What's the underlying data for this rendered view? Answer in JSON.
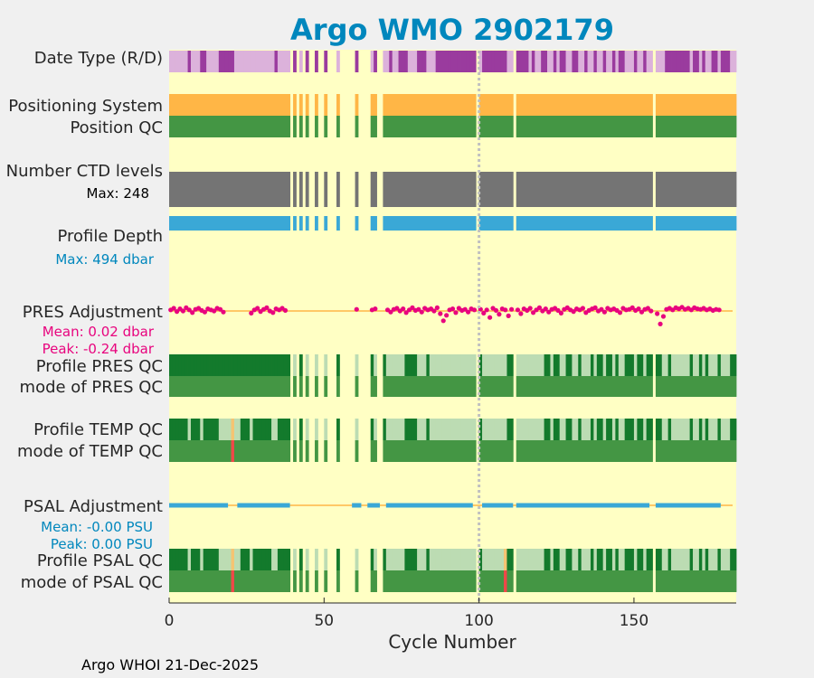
{
  "chart_data": {
    "type": "timeline",
    "title": "Argo WMO 2902179",
    "xlabel": "Cycle Number",
    "xlim": [
      0,
      183
    ],
    "xticks": [
      "0",
      "50",
      "100",
      "150"
    ],
    "marker_cycle": 100,
    "footer": "Argo WHOI 21-Dec-2025",
    "rows": {
      "date_type": "Date Type (R/D)",
      "positioning": "Positioning System",
      "position_qc": "Position QC",
      "ctd_levels": "Number CTD levels",
      "ctd_max": "Max: 248",
      "profile_depth": "Profile Depth",
      "depth_max": "Max:  494 dbar",
      "pres_adj": "PRES Adjustment",
      "pres_mean": "Mean: 0.02 dbar",
      "pres_peak": "Peak: -0.24 dbar",
      "pres_qc": "Profile PRES QC",
      "pres_mode": "mode of PRES QC",
      "temp_qc": "Profile TEMP QC",
      "temp_mode": "mode of TEMP QC",
      "psal_adj": "PSAL Adjustment",
      "psal_mean": "Mean: -0.00 PSU",
      "psal_peak": "Peak: 0.00 PSU",
      "psal_qc": "Profile PSAL QC",
      "psal_mode": "mode of PSAL QC"
    },
    "missing_cycles": [
      39,
      41,
      43,
      45,
      46,
      48,
      49,
      51,
      52,
      53,
      55,
      56,
      57,
      58,
      59,
      61,
      62,
      63,
      64,
      67,
      68,
      99,
      111,
      156
    ],
    "date_type_realtime_cycles": [
      6,
      10,
      11,
      16,
      17,
      18,
      19,
      20,
      34,
      40,
      44,
      47,
      50,
      60,
      66,
      71,
      74,
      75,
      76,
      80,
      81,
      82,
      86,
      87,
      88,
      89,
      90,
      91,
      92,
      93,
      94,
      95,
      96,
      97,
      98,
      101,
      102,
      103,
      104,
      105,
      106,
      107,
      108,
      112,
      113,
      114,
      115,
      117,
      120,
      121,
      124,
      126,
      127,
      130,
      131,
      134,
      137,
      140,
      143,
      145,
      146,
      150,
      153,
      160,
      161,
      162,
      163,
      164,
      165,
      166,
      167,
      169,
      170,
      172,
      175,
      176,
      178,
      179,
      180
    ],
    "pres_qc_partial_cycles": [
      39,
      40,
      44,
      47,
      50,
      60,
      66,
      70,
      71,
      72,
      73,
      74,
      75,
      80,
      81,
      82,
      84,
      85,
      86,
      87,
      88,
      89,
      90,
      91,
      92,
      93,
      94,
      95,
      96,
      97,
      98,
      101,
      102,
      103,
      104,
      105,
      106,
      107,
      108,
      112,
      113,
      114,
      115,
      116,
      117,
      118,
      119,
      120,
      123,
      126,
      127,
      130,
      131,
      133,
      134,
      135,
      137,
      140,
      143,
      145,
      146,
      150,
      153,
      159,
      160,
      162,
      163,
      164,
      165,
      166,
      167,
      169,
      170,
      172,
      174,
      175,
      176,
      178,
      179,
      180
    ],
    "temp_qc_partial_cycles": [
      6,
      10,
      16,
      17,
      18,
      19,
      20,
      21,
      22,
      26,
      33,
      34,
      40,
      44,
      47,
      50,
      60,
      66,
      70,
      71,
      72,
      73,
      74,
      75,
      80,
      81,
      82,
      84,
      85,
      86,
      87,
      88,
      89,
      90,
      91,
      92,
      93,
      94,
      95,
      96,
      97,
      98,
      101,
      102,
      103,
      104,
      105,
      106,
      107,
      108,
      112,
      113,
      114,
      115,
      116,
      117,
      118,
      119,
      120,
      123,
      126,
      127,
      130,
      131,
      133,
      134,
      135,
      137,
      140,
      143,
      145,
      146,
      150,
      153,
      159,
      160,
      162,
      163,
      164,
      165,
      166,
      167,
      169,
      170,
      172,
      174,
      175,
      176,
      178,
      179,
      180
    ],
    "psal_qc_partial_cycles": [
      6,
      10,
      16,
      17,
      18,
      19,
      20,
      21,
      22,
      26,
      33,
      34,
      40,
      44,
      47,
      50,
      60,
      66,
      70,
      71,
      72,
      73,
      74,
      75,
      80,
      81,
      82,
      84,
      85,
      86,
      87,
      88,
      89,
      90,
      91,
      92,
      93,
      94,
      95,
      96,
      97,
      98,
      101,
      102,
      103,
      104,
      105,
      106,
      107,
      108,
      112,
      113,
      114,
      115,
      116,
      117,
      118,
      119,
      120,
      123,
      126,
      127,
      130,
      131,
      133,
      134,
      135,
      137,
      140,
      143,
      145,
      146,
      150,
      153,
      159,
      160,
      162,
      163,
      164,
      165,
      166,
      167,
      169,
      170,
      172,
      174,
      175,
      176,
      178,
      179,
      180
    ],
    "temp_bad_cycles": [
      20
    ],
    "psal_bad_cycles": [
      20,
      108
    ],
    "pres_adjustment_cycles": [
      [
        0,
        0.02
      ],
      [
        1,
        0.05
      ],
      [
        2,
        -0.01
      ],
      [
        3,
        0.04
      ],
      [
        4,
        0.0
      ],
      [
        5,
        0.06
      ],
      [
        6,
        0.02
      ],
      [
        7,
        -0.03
      ],
      [
        8,
        0.03
      ],
      [
        9,
        0.05
      ],
      [
        10,
        0.01
      ],
      [
        11,
        -0.02
      ],
      [
        12,
        0.04
      ],
      [
        13,
        0.02
      ],
      [
        14,
        0.0
      ],
      [
        15,
        0.05
      ],
      [
        16,
        0.03
      ],
      [
        17,
        -0.02
      ],
      [
        26,
        -0.04
      ],
      [
        27,
        0.02
      ],
      [
        28,
        0.05
      ],
      [
        29,
        -0.01
      ],
      [
        30,
        0.03
      ],
      [
        31,
        0.06
      ],
      [
        32,
        0.0
      ],
      [
        33,
        -0.03
      ],
      [
        34,
        0.04
      ],
      [
        35,
        0.02
      ],
      [
        36,
        0.05
      ],
      [
        37,
        0.01
      ],
      [
        60,
        0.03
      ],
      [
        65,
        0.02
      ],
      [
        66,
        0.04
      ],
      [
        70,
        0.02
      ],
      [
        71,
        -0.02
      ],
      [
        72,
        0.03
      ],
      [
        73,
        0.05
      ],
      [
        74,
        0.0
      ],
      [
        75,
        0.04
      ],
      [
        76,
        -0.03
      ],
      [
        77,
        0.02
      ],
      [
        78,
        0.06
      ],
      [
        79,
        0.01
      ],
      [
        80,
        0.03
      ],
      [
        81,
        -0.02
      ],
      [
        82,
        0.05
      ],
      [
        83,
        0.02
      ],
      [
        84,
        0.04
      ],
      [
        85,
        0.0
      ],
      [
        86,
        0.06
      ],
      [
        87,
        -0.05
      ],
      [
        88,
        -0.18
      ],
      [
        89,
        -0.08
      ],
      [
        90,
        0.02
      ],
      [
        91,
        0.04
      ],
      [
        92,
        -0.03
      ],
      [
        93,
        0.05
      ],
      [
        94,
        0.01
      ],
      [
        95,
        0.03
      ],
      [
        96,
        -0.02
      ],
      [
        97,
        0.04
      ],
      [
        98,
        0.02
      ],
      [
        100,
        0.03
      ],
      [
        101,
        -0.04
      ],
      [
        102,
        0.02
      ],
      [
        103,
        -0.12
      ],
      [
        104,
        0.05
      ],
      [
        105,
        0.01
      ],
      [
        106,
        -0.06
      ],
      [
        107,
        0.04
      ],
      [
        108,
        0.02
      ],
      [
        109,
        -0.09
      ],
      [
        110,
        0.03
      ],
      [
        112,
        0.02
      ],
      [
        113,
        -0.05
      ],
      [
        114,
        0.04
      ],
      [
        115,
        0.01
      ],
      [
        116,
        0.05
      ],
      [
        117,
        -0.03
      ],
      [
        118,
        0.02
      ],
      [
        119,
        0.06
      ],
      [
        120,
        0.0
      ],
      [
        121,
        0.04
      ],
      [
        122,
        -0.02
      ],
      [
        123,
        0.03
      ],
      [
        124,
        0.05
      ],
      [
        125,
        0.01
      ],
      [
        126,
        -0.04
      ],
      [
        127,
        0.03
      ],
      [
        128,
        0.06
      ],
      [
        129,
        0.02
      ],
      [
        130,
        -0.01
      ],
      [
        131,
        0.04
      ],
      [
        132,
        0.02
      ],
      [
        133,
        0.05
      ],
      [
        134,
        -0.03
      ],
      [
        135,
        0.01
      ],
      [
        136,
        0.04
      ],
      [
        137,
        0.06
      ],
      [
        138,
        0.0
      ],
      [
        139,
        0.03
      ],
      [
        140,
        -0.02
      ],
      [
        141,
        0.05
      ],
      [
        142,
        0.02
      ],
      [
        143,
        0.04
      ],
      [
        144,
        0.01
      ],
      [
        145,
        -0.03
      ],
      [
        146,
        0.05
      ],
      [
        147,
        0.02
      ],
      [
        148,
        0.03
      ],
      [
        149,
        0.06
      ],
      [
        150,
        0.01
      ],
      [
        151,
        0.04
      ],
      [
        152,
        -0.02
      ],
      [
        153,
        0.03
      ],
      [
        154,
        0.05
      ],
      [
        155,
        0.0
      ],
      [
        157,
        -0.05
      ],
      [
        158,
        -0.24
      ],
      [
        159,
        -0.1
      ],
      [
        160,
        0.03
      ],
      [
        161,
        0.05
      ],
      [
        162,
        0.02
      ],
      [
        163,
        0.06
      ],
      [
        164,
        0.04
      ],
      [
        165,
        0.07
      ],
      [
        166,
        0.03
      ],
      [
        167,
        0.05
      ],
      [
        168,
        0.02
      ],
      [
        169,
        0.06
      ],
      [
        170,
        0.04
      ],
      [
        171,
        0.03
      ],
      [
        172,
        0.05
      ],
      [
        173,
        0.02
      ],
      [
        174,
        0.04
      ],
      [
        175,
        0.01
      ],
      [
        176,
        0.03
      ],
      [
        177,
        0.02
      ]
    ],
    "psal_adjustment_spans": [
      [
        0,
        18
      ],
      [
        22,
        38
      ],
      [
        59,
        61
      ],
      [
        64,
        67
      ],
      [
        70,
        97
      ],
      [
        101,
        110
      ],
      [
        112,
        154
      ],
      [
        157,
        177
      ]
    ],
    "colors": {
      "background": "#f0f0f0",
      "axes": "#ffffc4",
      "title": "#0087bd",
      "date_real": "#9a3b9e",
      "date_delayed": "#dcb2db",
      "positioning": "#ffb646",
      "qc_good": "#449644",
      "qc_dark": "#137a2c",
      "qc_light": "#bcdcb3",
      "qc_bad": "#f04848",
      "qc_probable": "#f5c472",
      "ctd": "#747474",
      "depth": "#3aa8d6",
      "baseline": "#ffb646",
      "pres_marker": "#e8047e",
      "psal_line": "#3aa8d6",
      "psal_text": "#0087bd",
      "gap": "#ffffc4",
      "vline": "#c0c0c0",
      "text": "#262626"
    }
  }
}
